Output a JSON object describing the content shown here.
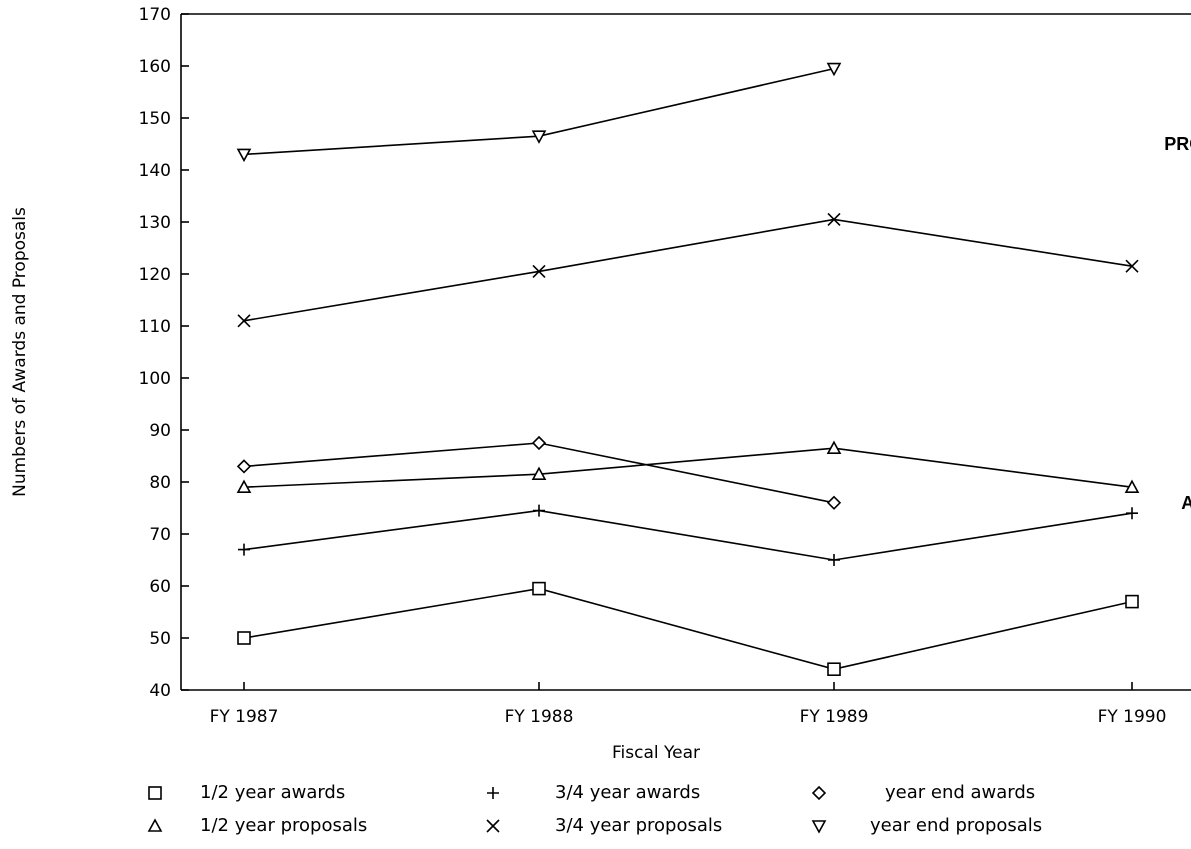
{
  "chart_data": {
    "type": "line",
    "xlabel": "Fiscal Year",
    "ylabel": "Numbers of Awards and Proposals",
    "categories": [
      "FY 1987",
      "FY 1988",
      "FY 1989",
      "FY 1990"
    ],
    "ylim": [
      40,
      170
    ],
    "yticks": [
      40,
      50,
      60,
      70,
      80,
      90,
      100,
      110,
      120,
      130,
      140,
      150,
      160,
      170
    ],
    "grid": false,
    "legend_position": "bottom",
    "series": [
      {
        "name": "1/2 year awards",
        "marker": "square",
        "values": [
          50,
          59.5,
          44,
          57
        ]
      },
      {
        "name": "3/4 year awards",
        "marker": "plus",
        "values": [
          67,
          74.5,
          65,
          74
        ]
      },
      {
        "name": "year end awards",
        "marker": "diamond",
        "values": [
          83,
          87.5,
          76,
          null
        ]
      },
      {
        "name": "1/2 year proposals",
        "marker": "triangle-up",
        "values": [
          79,
          81.5,
          86.5,
          79
        ]
      },
      {
        "name": "3/4 year proposals",
        "marker": "x",
        "values": [
          111,
          120.5,
          130.5,
          121.5
        ]
      },
      {
        "name": "year end proposals",
        "marker": "triangle-down",
        "values": [
          143,
          146.5,
          159.5,
          null
        ]
      }
    ],
    "annotations": [
      {
        "text": "PROPOSALS",
        "x": 3.3,
        "y": 145
      },
      {
        "text": "AWARDS",
        "x": 3.3,
        "y": 76
      }
    ]
  }
}
